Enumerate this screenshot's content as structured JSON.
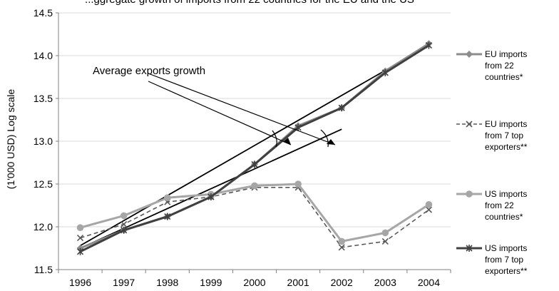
{
  "chart_data": {
    "type": "line",
    "title": "...ggregate growth of imports from 22 countries for the EU and the US",
    "ylabel": "(1'000 USD)  Log scale",
    "xlabel": "",
    "ylim": [
      11.5,
      14.5
    ],
    "yticks": [
      "11.5",
      "12.0",
      "12.5",
      "13.0",
      "13.5",
      "14.0",
      "14.5"
    ],
    "categories": [
      "1996",
      "1997",
      "1998",
      "1999",
      "2000",
      "2001",
      "2002",
      "2003",
      "2004"
    ],
    "grid": "horizontal",
    "legend_position": "right",
    "series": [
      {
        "name": "EU imports from 22 countries*",
        "name_lines": [
          "EU imports",
          "from 22",
          "countries*"
        ],
        "values": [
          11.75,
          11.96,
          12.12,
          12.35,
          12.73,
          13.18,
          13.39,
          13.82,
          14.14
        ],
        "color": "#8c8c8c",
        "marker": "diamond",
        "dash": "solid"
      },
      {
        "name": "EU imports from 7 top exporters**",
        "name_lines": [
          "EU imports",
          "from 7 top",
          "exporters**"
        ],
        "values": [
          11.87,
          12.03,
          12.29,
          12.35,
          12.46,
          12.46,
          11.76,
          11.83,
          12.2
        ],
        "color": "#595959",
        "marker": "x",
        "dash": "dashed"
      },
      {
        "name": "US imports from 22 countries*",
        "name_lines": [
          "US imports",
          "from 22",
          "countries*"
        ],
        "values": [
          11.99,
          12.13,
          12.34,
          12.38,
          12.48,
          12.5,
          11.83,
          11.93,
          12.26
        ],
        "color": "#a6a6a6",
        "marker": "circle",
        "dash": "solid"
      },
      {
        "name": "US imports from 7 top exporters**",
        "name_lines": [
          "US imports",
          "from 7 top",
          "exporters**"
        ],
        "values": [
          11.71,
          11.96,
          12.12,
          12.35,
          12.73,
          13.16,
          13.39,
          13.8,
          14.12
        ],
        "color": "#404040",
        "marker": "star",
        "dash": "solid"
      }
    ],
    "trend_lines": [
      {
        "from": 11.75,
        "to": 13.14,
        "x_from": "1996",
        "x_to": "2002"
      },
      {
        "from": 11.78,
        "to": 14.12,
        "x_from": "1996",
        "x_to": "2004"
      }
    ],
    "annotation": "Average exports growth"
  }
}
